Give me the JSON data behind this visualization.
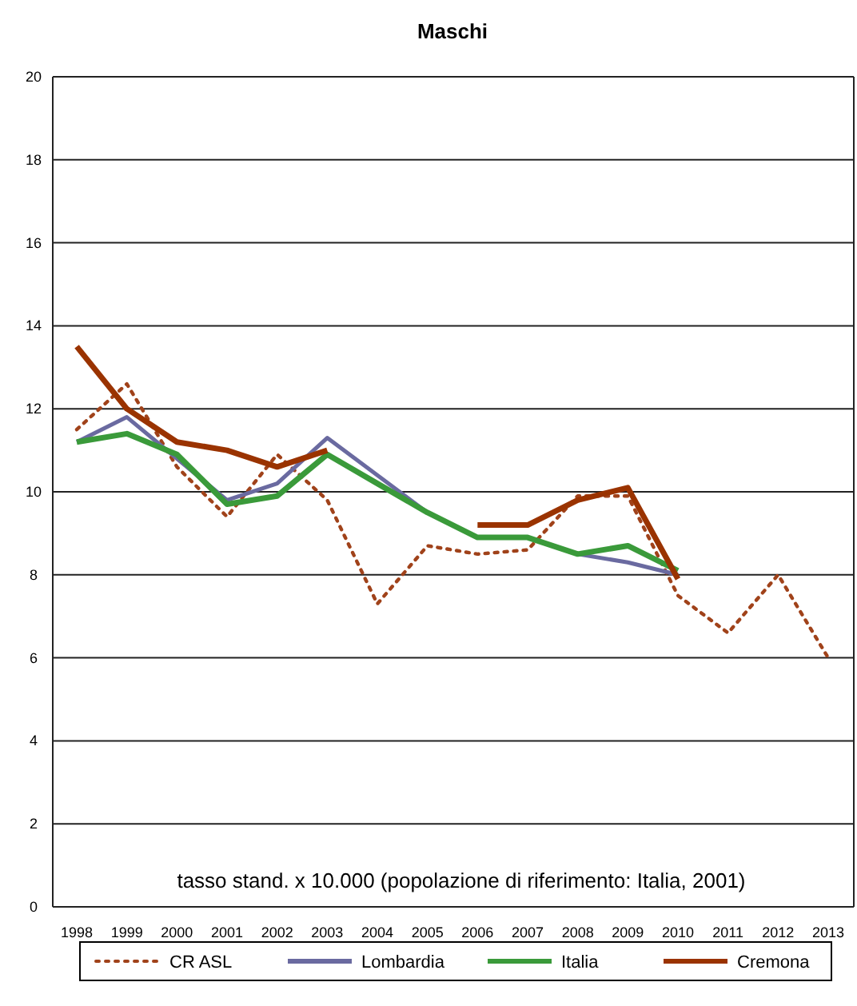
{
  "chart_data": {
    "type": "line",
    "title": "Maschi",
    "categories": [
      "1998",
      "1999",
      "2000",
      "2001",
      "2002",
      "2003",
      "2004",
      "2005",
      "2006",
      "2007",
      "2008",
      "2009",
      "2010",
      "2011",
      "2012",
      "2013"
    ],
    "series": [
      {
        "name": "CR ASL",
        "color": "#a0421a",
        "line_style": "dotted",
        "values": [
          11.5,
          12.6,
          10.6,
          9.4,
          10.9,
          9.8,
          7.3,
          8.7,
          8.5,
          8.6,
          9.9,
          9.9,
          7.5,
          6.6,
          8.0,
          6.0
        ]
      },
      {
        "name": "Lombardia",
        "color": "#6a6aa0",
        "values": [
          11.2,
          11.8,
          10.8,
          9.8,
          10.2,
          11.3,
          10.4,
          9.5,
          8.9,
          8.9,
          8.5,
          8.3,
          8.0,
          null,
          null,
          null
        ]
      },
      {
        "name": "Italia",
        "color": "#3a9a3a",
        "values": [
          11.2,
          11.4,
          10.9,
          9.7,
          9.9,
          10.9,
          10.2,
          9.5,
          8.9,
          8.9,
          8.5,
          8.7,
          8.1,
          null,
          null,
          null
        ]
      },
      {
        "name": "Cremona",
        "color": "#9a3300",
        "values": [
          13.5,
          12.0,
          11.2,
          11.0,
          10.6,
          11.0,
          null,
          null,
          9.2,
          9.2,
          9.8,
          10.1,
          7.9,
          null,
          null,
          null
        ]
      }
    ],
    "ylim": [
      0,
      20
    ],
    "yticks": [
      0,
      2,
      4,
      6,
      8,
      10,
      12,
      14,
      16,
      18,
      20
    ],
    "grid": "y",
    "legend": "bottom",
    "annotations": [
      "tasso stand. x 10.000 (popolazione di riferimento: Italia, 2001)"
    ]
  }
}
